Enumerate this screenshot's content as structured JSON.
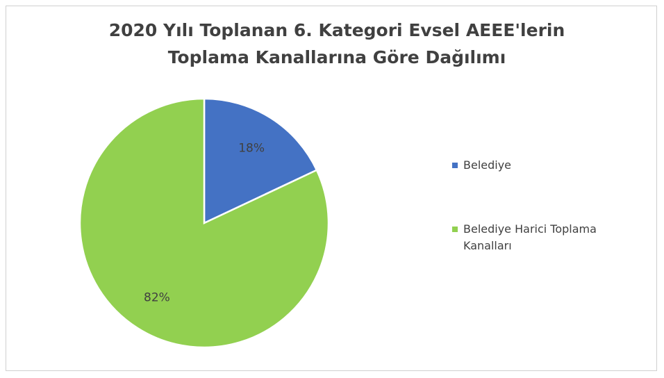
{
  "chart_data": {
    "type": "pie",
    "title": "2020 Yılı Toplanan 6. Kategori Evsel AEEE'lerin Toplama Kanallarına Göre Dağılımı",
    "categories": [
      "Belediye",
      "Belediye Harici Toplama Kanalları"
    ],
    "values": [
      18,
      82
    ],
    "value_labels": [
      "18%",
      "82%"
    ],
    "colors": [
      "#4472c4",
      "#92d050"
    ],
    "legend": "right"
  }
}
